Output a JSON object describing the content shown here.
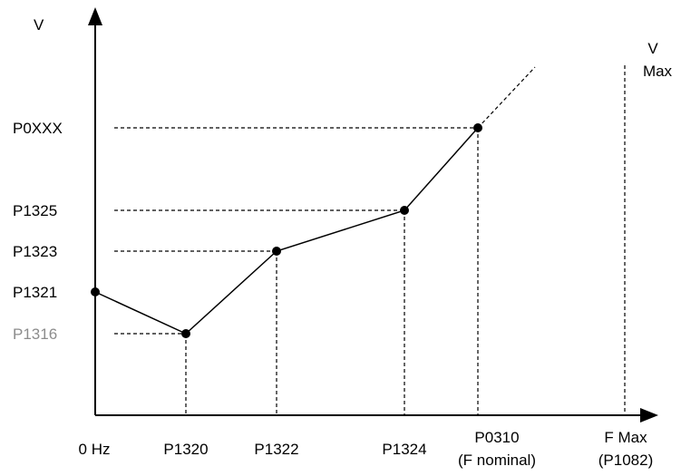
{
  "axes": {
    "y_label": "V",
    "x_label_top": "F Max",
    "x_label_bottom": "(P1082)",
    "vmax_top": "V",
    "vmax_bottom": "Max"
  },
  "y_levels": [
    {
      "label": "P0XXX",
      "muted": false
    },
    {
      "label": "P1325",
      "muted": false
    },
    {
      "label": "P1323",
      "muted": false
    },
    {
      "label": "P1321",
      "muted": false
    },
    {
      "label": "P1316",
      "muted": true
    }
  ],
  "x_levels": [
    {
      "label": "0 Hz"
    },
    {
      "label": "P1320"
    },
    {
      "label": "P1322"
    },
    {
      "label": "P1324"
    },
    {
      "label": "P0310",
      "sublabel": "(F nominal)"
    }
  ],
  "chart_data": {
    "type": "line",
    "title": "",
    "x": [
      "0 Hz",
      "P1320",
      "P1322",
      "P1324",
      "P0310"
    ],
    "y": [
      "P1321",
      "P1316",
      "P1323",
      "P1325",
      "P0XXX"
    ],
    "continuation": "dashed extension beyond P0310 toward V Max",
    "markers": [
      "V Max",
      "F Max (P1082)"
    ]
  }
}
